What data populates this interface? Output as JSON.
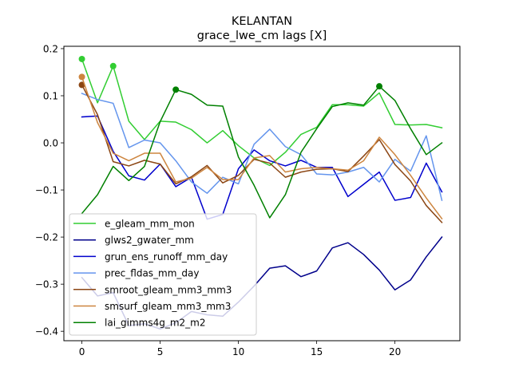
{
  "chart_data": {
    "type": "line",
    "title": "KELANTAN",
    "subtitle": "grace_lwe_cm lags [X]",
    "xlabel": "",
    "ylabel": "",
    "xlim": [
      -1.15,
      24.15
    ],
    "ylim": [
      -0.42,
      0.205
    ],
    "xticks": [
      0,
      5,
      10,
      15,
      20
    ],
    "yticks": [
      -0.4,
      -0.3,
      -0.2,
      -0.1,
      0.0,
      0.1,
      0.2
    ],
    "ytick_labels": [
      "−0.4",
      "−0.3",
      "−0.2",
      "−0.1",
      "0.0",
      "0.1",
      "0.2"
    ],
    "grid": false,
    "legend_position": "lower-left",
    "x": [
      0,
      1,
      2,
      3,
      4,
      5,
      6,
      7,
      8,
      9,
      10,
      11,
      12,
      13,
      14,
      15,
      16,
      17,
      18,
      19,
      20,
      21,
      22,
      23
    ],
    "series": [
      {
        "name": "e_gleam_mm_mon",
        "color": "#32cd32",
        "values": [
          0.178,
          0.085,
          0.163,
          0.046,
          0.007,
          0.046,
          0.044,
          0.028,
          0.0,
          0.026,
          -0.006,
          -0.032,
          -0.048,
          -0.02,
          0.018,
          0.033,
          0.081,
          0.081,
          0.078,
          0.106,
          0.039,
          0.038,
          0.039,
          0.032
        ],
        "markers": [
          {
            "x": 0,
            "y": 0.178
          },
          {
            "x": 2,
            "y": 0.163
          }
        ]
      },
      {
        "name": "glws2_gwater_mm",
        "color": "#00008b",
        "values": [
          -0.286,
          -0.325,
          -0.318,
          -0.388,
          -0.384,
          -0.395,
          -0.382,
          -0.358,
          -0.365,
          -0.368,
          -0.338,
          -0.304,
          -0.266,
          -0.261,
          -0.284,
          -0.272,
          -0.223,
          -0.212,
          -0.237,
          -0.27,
          -0.312,
          -0.291,
          -0.242,
          -0.2
        ],
        "markers": []
      },
      {
        "name": "grun_ens_runoff_mm_day",
        "color": "#0000cd",
        "values": [
          0.055,
          0.057,
          -0.018,
          -0.07,
          -0.079,
          -0.045,
          -0.093,
          -0.073,
          -0.162,
          -0.152,
          -0.055,
          -0.015,
          -0.038,
          -0.049,
          -0.037,
          -0.052,
          -0.052,
          -0.114,
          -0.088,
          -0.062,
          -0.122,
          -0.116,
          -0.043,
          -0.104
        ],
        "markers": []
      },
      {
        "name": "prec_fldas_mm_day",
        "color": "#6495ed",
        "values": [
          0.105,
          0.092,
          0.084,
          -0.01,
          0.006,
          0.0,
          -0.038,
          -0.083,
          -0.107,
          -0.073,
          -0.087,
          -0.003,
          0.029,
          -0.008,
          -0.025,
          -0.066,
          -0.068,
          -0.062,
          -0.052,
          -0.083,
          -0.035,
          -0.06,
          0.015,
          -0.122
        ],
        "markers": []
      },
      {
        "name": "smroot_gleam_mm3_mm3",
        "color": "#8b4513",
        "values": [
          0.123,
          0.06,
          -0.04,
          -0.049,
          -0.037,
          -0.045,
          -0.087,
          -0.072,
          -0.048,
          -0.085,
          -0.069,
          -0.035,
          -0.043,
          -0.073,
          -0.062,
          -0.056,
          -0.055,
          -0.061,
          -0.028,
          0.007,
          -0.046,
          -0.081,
          -0.133,
          -0.169
        ],
        "markers": [
          {
            "x": 0,
            "y": 0.123
          }
        ]
      },
      {
        "name": "smsurf_gleam_mm3_mm3",
        "color": "#cd853f",
        "values": [
          0.14,
          0.043,
          -0.022,
          -0.038,
          -0.022,
          -0.022,
          -0.083,
          -0.075,
          -0.052,
          -0.078,
          -0.078,
          -0.032,
          -0.027,
          -0.062,
          -0.055,
          -0.052,
          -0.055,
          -0.058,
          -0.038,
          0.012,
          -0.025,
          -0.069,
          -0.117,
          -0.161
        ],
        "markers": [
          {
            "x": 0,
            "y": 0.14
          }
        ]
      },
      {
        "name": "lai_gimms4g_m2_m2",
        "color": "#008000",
        "values": [
          -0.15,
          -0.11,
          -0.05,
          -0.08,
          -0.05,
          0.045,
          0.113,
          0.103,
          0.08,
          0.078,
          -0.03,
          -0.09,
          -0.159,
          -0.11,
          -0.02,
          0.03,
          0.077,
          0.085,
          0.08,
          0.12,
          0.09,
          0.03,
          -0.025,
          0.0
        ],
        "markers": [
          {
            "x": 6,
            "y": 0.113
          },
          {
            "x": 19,
            "y": 0.12
          }
        ]
      }
    ]
  }
}
